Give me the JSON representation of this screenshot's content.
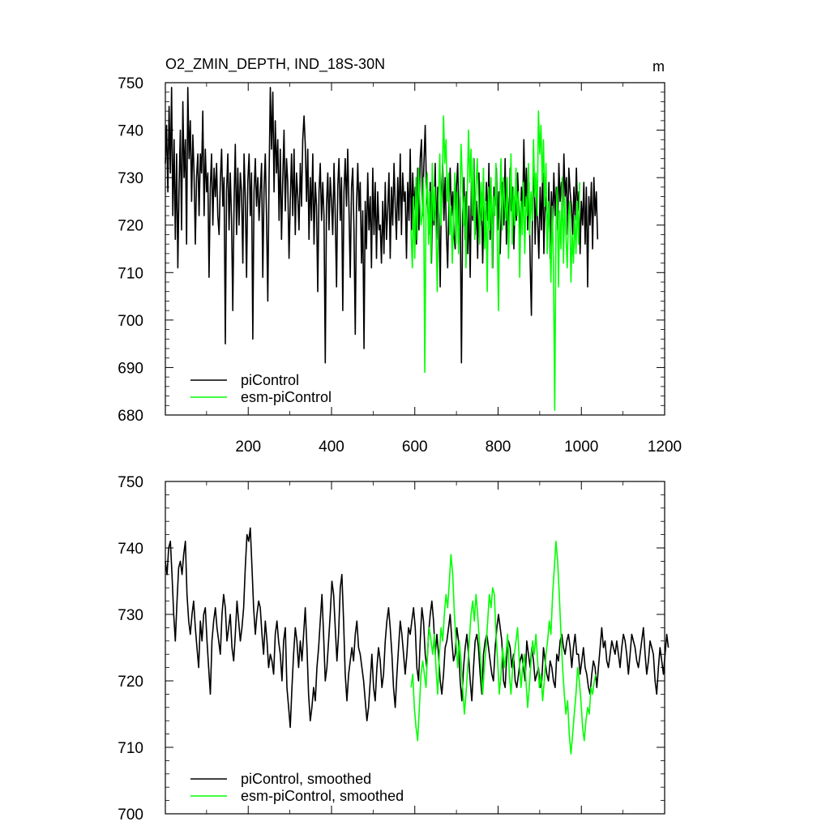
{
  "chart_data": [
    {
      "type": "line",
      "title": "O2_ZMIN_DEPTH, IND_18S-30N",
      "units": "m",
      "xlim": [
        1,
        1200
      ],
      "ylim": [
        680,
        750
      ],
      "x_ticks": [
        200,
        400,
        600,
        800,
        1000,
        1200
      ],
      "x_tick_labels": [
        "200",
        "400",
        "600",
        "800",
        "1000",
        "1200"
      ],
      "y_ticks": [
        680,
        690,
        700,
        710,
        720,
        730,
        740,
        750
      ],
      "y_tick_labels": [
        "680",
        "690",
        "700",
        "710",
        "720",
        "730",
        "740",
        "750"
      ],
      "legend_position": "bottom-left",
      "series": [
        {
          "name": "piControl",
          "color": "#000000",
          "x_start": 1,
          "x_step": 3,
          "values": [
            733,
            741,
            727,
            745,
            731,
            749,
            722,
            738,
            717,
            735,
            711,
            729,
            740,
            719,
            746,
            730,
            738,
            716,
            749,
            734,
            742,
            725,
            739,
            731,
            716,
            730,
            735,
            722,
            735,
            731,
            744,
            722,
            736,
            727,
            731,
            709,
            728,
            735,
            720,
            732,
            726,
            733,
            722,
            718,
            729,
            736,
            724,
            730,
            695,
            727,
            735,
            719,
            731,
            721,
            702,
            725,
            737,
            718,
            732,
            720,
            731,
            727,
            712,
            735,
            726,
            709,
            729,
            735,
            722,
            731,
            696,
            727,
            734,
            724,
            730,
            721,
            727,
            733,
            709,
            728,
            735,
            722,
            704,
            729,
            749,
            736,
            748,
            727,
            742,
            731,
            738,
            721,
            736,
            717,
            730,
            740,
            723,
            734,
            729,
            713,
            725,
            735,
            722,
            736,
            718,
            731,
            726,
            719,
            733,
            724,
            738,
            743,
            737,
            725,
            736,
            717,
            730,
            721,
            735,
            716,
            729,
            724,
            706,
            727,
            733,
            721,
            729,
            722,
            691,
            724,
            731,
            719,
            730,
            725,
            718,
            733,
            722,
            707,
            728,
            734,
            721,
            730,
            702,
            727,
            734,
            724,
            736,
            723,
            709,
            728,
            732,
            719,
            697,
            724,
            733,
            723,
            729,
            712,
            723,
            694,
            725,
            715,
            731,
            719,
            726,
            711,
            732,
            718,
            729,
            713,
            727,
            719,
            720,
            712,
            725,
            714,
            729,
            717,
            723,
            731,
            713,
            728,
            720,
            733,
            724,
            717,
            730,
            721,
            735,
            718,
            731,
            725,
            727,
            713,
            729,
            721,
            736,
            719,
            731,
            723,
            728,
            716,
            732,
            719,
            734,
            738,
            722,
            733,
            741,
            728,
            724,
            718,
            729,
            712,
            726,
            720,
            733,
            717,
            728,
            722,
            707,
            727,
            733,
            721,
            730,
            718,
            711,
            725,
            732,
            722,
            727,
            718,
            715,
            728,
            733,
            720,
            726,
            691,
            722,
            730,
            717,
            727,
            714,
            724,
            709,
            729,
            721,
            734,
            718,
            725,
            713,
            731,
            720,
            727,
            712,
            724,
            719,
            729,
            721,
            733,
            717,
            726,
            711,
            728,
            724,
            732,
            719,
            727,
            714,
            723,
            729,
            720,
            734,
            716,
            726,
            719,
            732,
            723,
            728,
            715,
            726,
            721,
            731,
            724,
            717,
            728,
            722,
            738,
            724,
            732,
            719,
            729,
            712,
            701,
            725,
            733,
            716,
            727,
            721,
            713,
            728,
            719,
            731,
            714,
            726,
            723,
            718,
            729,
            713,
            727,
            720,
            731,
            722,
            728,
            719,
            733,
            725,
            729,
            721,
            735,
            726,
            730,
            718,
            732,
            727,
            724,
            718,
            728,
            721,
            732,
            723,
            727,
            714,
            725,
            720,
            729,
            716,
            728,
            707,
            726,
            720,
            729,
            715,
            730,
            722,
            727,
            717
          ]
        },
        {
          "name": "esm-piControl",
          "color": "#00ff00",
          "x_start": 591,
          "x_step": 3,
          "values": [
            719,
            711,
            726,
            713,
            730,
            717,
            732,
            725,
            720,
            722,
            730,
            689,
            724,
            731,
            716,
            727,
            712,
            733,
            721,
            728,
            719,
            706,
            726,
            735,
            720,
            729,
            743,
            733,
            738,
            725,
            731,
            718,
            724,
            712,
            721,
            731,
            716,
            727,
            714,
            723,
            737,
            730,
            720,
            726,
            711,
            727,
            740,
            729,
            736,
            722,
            734,
            717,
            728,
            734,
            725,
            716,
            729,
            721,
            732,
            715,
            725,
            706,
            728,
            719,
            730,
            711,
            726,
            722,
            733,
            717,
            702,
            725,
            734,
            719,
            730,
            724,
            721,
            730,
            713,
            723,
            735,
            716,
            728,
            720,
            732,
            722,
            727,
            709,
            725,
            718,
            729,
            714,
            726,
            722,
            733,
            718,
            727,
            721,
            738,
            726,
            731,
            722,
            744,
            735,
            741,
            729,
            738,
            724,
            733,
            714,
            725,
            719,
            708,
            724,
            712,
            681,
            720,
            728,
            707,
            723,
            715,
            730,
            712,
            726,
            718,
            711,
            722,
            725,
            708,
            718,
            712,
            722,
            714,
            725,
            716,
            729
          ]
        }
      ]
    },
    {
      "type": "line",
      "title": "",
      "xlim": [
        1,
        1200
      ],
      "ylim": [
        700,
        750
      ],
      "y_ticks": [
        700,
        710,
        720,
        730,
        740,
        750
      ],
      "y_tick_labels": [
        "700",
        "710",
        "720",
        "730",
        "740",
        "750"
      ],
      "legend_position": "bottom-left",
      "series": [
        {
          "name": "piControl, smoothed",
          "color": "#000000",
          "x_start": 1,
          "x_step": 4,
          "values": [
            738,
            736,
            740,
            741,
            736,
            730,
            726,
            732,
            737,
            738,
            736,
            739,
            741,
            733,
            729,
            727,
            730,
            732,
            728,
            725,
            722,
            729,
            726,
            730,
            731,
            726,
            722,
            718,
            726,
            729,
            731,
            728,
            726,
            724,
            730,
            733,
            731,
            726,
            728,
            730,
            725,
            723,
            727,
            732,
            729,
            726,
            728,
            731,
            737,
            742,
            741,
            743,
            737,
            731,
            727,
            730,
            732,
            731,
            727,
            724,
            729,
            726,
            722,
            724,
            723,
            721,
            727,
            729,
            726,
            724,
            720,
            726,
            728,
            719,
            716,
            713,
            719,
            724,
            728,
            726,
            722,
            726,
            723,
            727,
            731,
            725,
            718,
            714,
            716,
            719,
            717,
            722,
            725,
            729,
            733,
            727,
            720,
            722,
            726,
            730,
            735,
            733,
            728,
            723,
            727,
            734,
            736,
            729,
            721,
            717,
            721,
            723,
            725,
            723,
            727,
            729,
            725,
            724,
            722,
            720,
            717,
            714,
            716,
            720,
            724,
            719,
            717,
            722,
            725,
            723,
            719,
            721,
            726,
            729,
            731,
            728,
            724,
            719,
            716,
            721,
            725,
            729,
            727,
            724,
            721,
            724,
            728,
            727,
            729,
            731,
            728,
            722,
            720,
            726,
            731,
            729,
            724,
            722,
            727,
            730,
            732,
            729,
            724,
            727,
            724,
            720,
            718,
            721,
            725,
            726,
            728,
            730,
            726,
            723,
            724,
            728,
            726,
            720,
            717,
            722,
            725,
            727,
            724,
            720,
            717,
            722,
            726,
            727,
            725,
            721,
            718,
            724,
            726,
            727,
            725,
            723,
            721,
            720,
            725,
            728,
            730,
            728,
            726,
            720,
            719,
            724,
            726,
            725,
            722,
            724,
            720,
            719,
            721,
            723,
            724,
            722,
            720,
            726,
            724,
            722,
            725,
            723,
            720,
            721,
            722,
            719,
            720,
            725,
            723,
            721,
            720,
            723,
            722,
            720,
            719,
            724,
            723,
            726,
            727,
            725,
            724,
            726,
            727,
            725,
            722,
            725,
            727,
            724,
            724,
            721,
            723,
            725,
            722,
            721,
            719,
            718,
            721,
            723,
            722,
            719,
            722,
            725,
            728,
            725,
            726,
            723,
            722,
            724,
            726,
            725,
            724,
            726,
            724,
            722,
            725,
            727,
            726,
            724,
            721,
            724,
            727,
            726,
            725,
            723,
            722,
            724,
            726,
            728,
            724,
            721,
            723,
            726,
            725,
            724,
            720,
            718,
            722,
            725,
            723,
            721,
            724,
            727,
            725
          ]
        },
        {
          "name": "esm-piControl, smoothed",
          "color": "#00ff00",
          "x_start": 591,
          "x_step": 4,
          "values": [
            719,
            721,
            716,
            713,
            711,
            716,
            721,
            723,
            721,
            719,
            725,
            728,
            726,
            724,
            727,
            722,
            718,
            724,
            728,
            726,
            730,
            733,
            731,
            735,
            739,
            736,
            730,
            726,
            722,
            726,
            723,
            719,
            715,
            718,
            722,
            726,
            730,
            732,
            729,
            733,
            730,
            726,
            722,
            718,
            722,
            725,
            729,
            733,
            731,
            734,
            733,
            727,
            723,
            718,
            721,
            725,
            722,
            724,
            727,
            721,
            718,
            722,
            724,
            726,
            728,
            723,
            719,
            722,
            724,
            720,
            716,
            719,
            723,
            726,
            724,
            727,
            723,
            719,
            721,
            717,
            720,
            724,
            726,
            729,
            727,
            733,
            737,
            741,
            738,
            733,
            727,
            722,
            718,
            715,
            717,
            712,
            709,
            712,
            715,
            718,
            722,
            720,
            717,
            713,
            711,
            714,
            716,
            715,
            719,
            718,
            720,
            721
          ]
        }
      ]
    }
  ]
}
